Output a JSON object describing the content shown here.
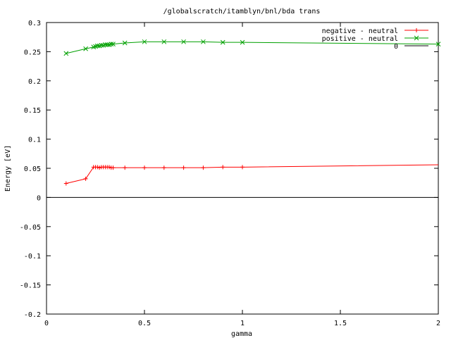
{
  "chart_data": {
    "type": "line",
    "title": "/globalscratch/itamblyn/bnl/bda trans",
    "xlabel": "gamma",
    "ylabel": "Energy [eV]",
    "xlim": [
      0,
      2
    ],
    "ylim": [
      -0.2,
      0.3
    ],
    "x_ticks": [
      "0",
      "0.5",
      "1",
      "1.5",
      "2"
    ],
    "y_ticks": [
      "-0.2",
      "-0.15",
      "-0.1",
      "-0.05",
      "0",
      "0.05",
      "0.1",
      "0.15",
      "0.2",
      "0.25",
      "0.3"
    ],
    "x_tick_values": [
      0,
      0.5,
      1,
      1.5,
      2
    ],
    "y_tick_values": [
      -0.2,
      -0.15,
      -0.1,
      -0.05,
      0,
      0.05,
      0.1,
      0.15,
      0.2,
      0.25,
      0.3
    ],
    "legend_position": "top-right",
    "grid": false,
    "series": [
      {
        "name": "negative - neutral",
        "color": "#ff0000",
        "marker": "plus",
        "x": [
          0.1,
          0.2,
          0.24,
          0.25,
          0.26,
          0.27,
          0.28,
          0.29,
          0.3,
          0.31,
          0.32,
          0.33,
          0.34,
          0.4,
          0.5,
          0.6,
          0.7,
          0.8,
          0.9,
          1.0
        ],
        "y": [
          0.024,
          0.032,
          0.052,
          0.052,
          0.052,
          0.051,
          0.052,
          0.052,
          0.052,
          0.052,
          0.052,
          0.051,
          0.051,
          0.051,
          0.051,
          0.051,
          0.051,
          0.051,
          0.052,
          0.052
        ],
        "line_end": [
          2.0,
          0.056
        ]
      },
      {
        "name": "positive - neutral",
        "color": "#00a000",
        "marker": "cross",
        "x": [
          0.1,
          0.2,
          0.24,
          0.25,
          0.26,
          0.27,
          0.28,
          0.29,
          0.3,
          0.31,
          0.32,
          0.33,
          0.34,
          0.4,
          0.5,
          0.6,
          0.7,
          0.8,
          0.9,
          1.0,
          2.0
        ],
        "y": [
          0.247,
          0.255,
          0.258,
          0.259,
          0.26,
          0.26,
          0.261,
          0.261,
          0.262,
          0.262,
          0.262,
          0.263,
          0.263,
          0.265,
          0.267,
          0.267,
          0.267,
          0.267,
          0.266,
          0.266,
          0.263
        ]
      },
      {
        "name": "0",
        "color": "#000000",
        "marker": "none",
        "x": [
          0,
          2
        ],
        "y": [
          0,
          0
        ]
      }
    ]
  }
}
